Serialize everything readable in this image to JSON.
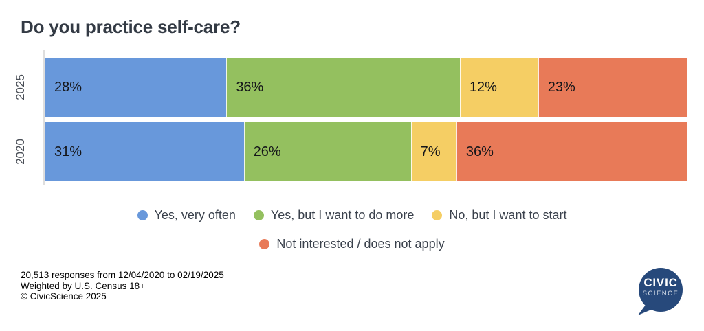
{
  "title": "Do you practice self-care?",
  "chart_data": {
    "type": "bar",
    "orientation": "horizontal",
    "stacked": true,
    "title": "Do you practice self-care?",
    "categories": [
      "2025",
      "2020"
    ],
    "series": [
      {
        "name": "Yes, very often",
        "color": "#6898DB",
        "values": [
          28,
          31
        ]
      },
      {
        "name": "Yes, but I want to do more",
        "color": "#94C05F",
        "values": [
          36,
          26
        ]
      },
      {
        "name": "No, but I want to start",
        "color": "#F5CE64",
        "values": [
          12,
          7
        ]
      },
      {
        "name": "Not interested / does not apply",
        "color": "#E87A58",
        "values": [
          23,
          36
        ]
      }
    ],
    "value_format": "percent",
    "value_labels": [
      [
        "28%",
        "36%",
        "12%",
        "23%"
      ],
      [
        "31%",
        "26%",
        "7%",
        "36%"
      ]
    ],
    "xlim": [
      0,
      100
    ],
    "grid": false,
    "legend_position": "bottom-center"
  },
  "legend": {
    "rows": [
      [
        0,
        1,
        2
      ],
      [
        3
      ]
    ]
  },
  "footer": {
    "line1": "20,513 responses from 12/04/2020 to 02/19/2025",
    "line2": "Weighted by U.S. Census 18+",
    "line3": "© CivicScience 2025"
  },
  "logo": {
    "line1": "CIVIC",
    "line2": "SCIENCE",
    "bubble_color": "#27497B"
  }
}
